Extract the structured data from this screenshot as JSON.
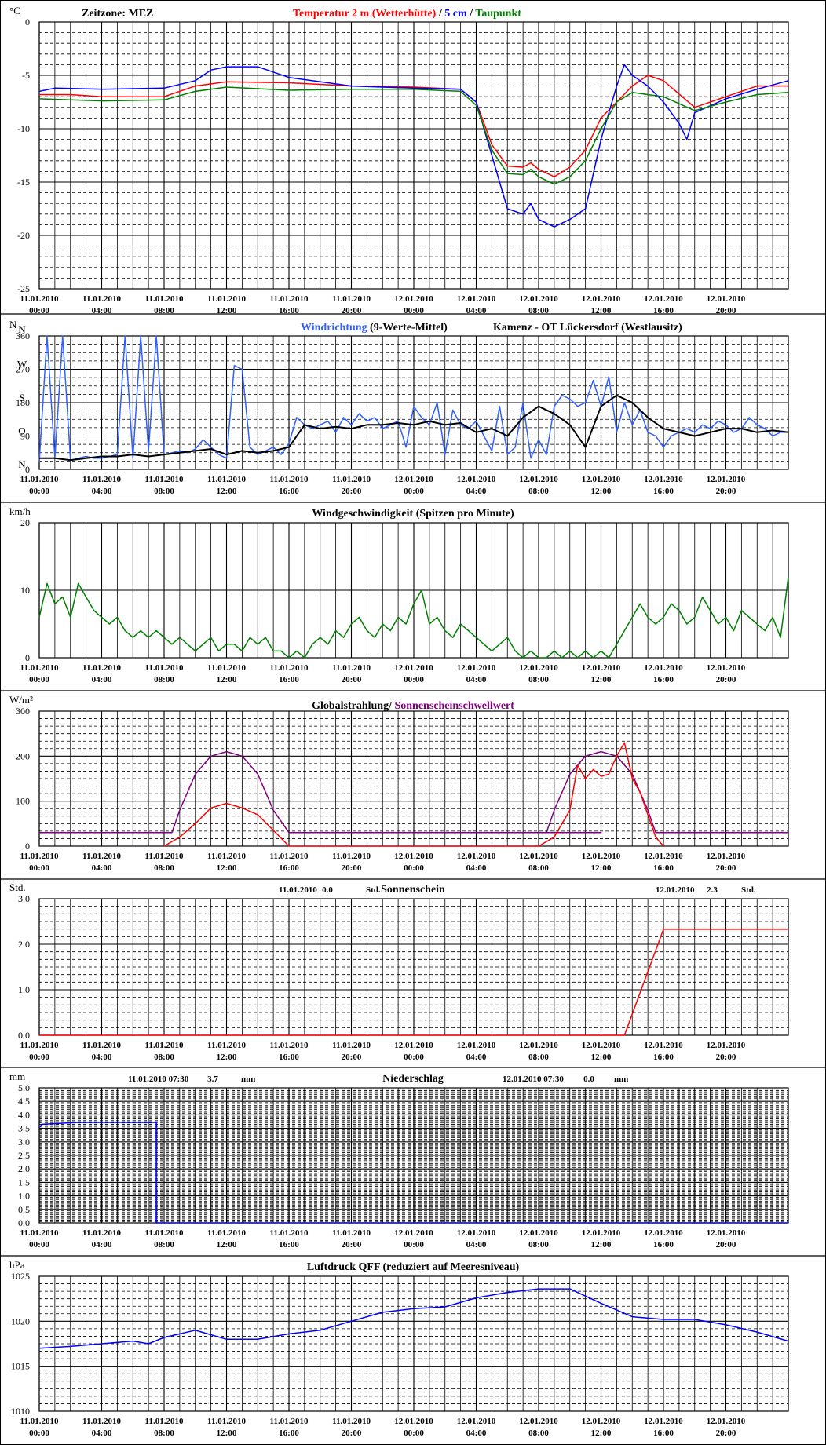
{
  "x_ticks": [
    [
      "11.01.2010",
      "00:00"
    ],
    [
      "11.01.2010",
      "04:00"
    ],
    [
      "11.01.2010",
      "08:00"
    ],
    [
      "11.01.2010",
      "12:00"
    ],
    [
      "11.01.2010",
      "16:00"
    ],
    [
      "11.01.2010",
      "20:00"
    ],
    [
      "12.01.2010",
      "00:00"
    ],
    [
      "12.01.2010",
      "04:00"
    ],
    [
      "12.01.2010",
      "08:00"
    ],
    [
      "12.01.2010",
      "12:00"
    ],
    [
      "12.01.2010",
      "16:00"
    ],
    [
      "12.01.2010",
      "20:00"
    ]
  ],
  "colors": {
    "temp2m": "#ff0000",
    "temp5cm": "#0000ff",
    "dewpoint": "#008000",
    "wind_dir": "#3060ff",
    "wind_dir_mean": "#000000",
    "wind_speed": "#008000",
    "radiation": "#ff0000",
    "sun_threshold": "#800080",
    "sunshine": "#ff0000",
    "precip": "#0000ff",
    "pressure": "#0000ff"
  },
  "chart_data": [
    {
      "type": "line",
      "id": "temperature",
      "unit": "°C",
      "title_parts": [
        {
          "text": "Zeitzone: MEZ",
          "color": "#000000"
        },
        {
          "text": "Temperatur 2 m (Wetterhütte)",
          "color": "#ff0000"
        },
        {
          "text": "  /  ",
          "color": "#000000"
        },
        {
          "text": "5 cm",
          "color": "#0000ff"
        },
        {
          "text": " / ",
          "color": "#000000"
        },
        {
          "text": "Taupunkt",
          "color": "#008000"
        }
      ],
      "ylim": [
        -25,
        0
      ],
      "y_ticks": [
        "0",
        "-5",
        "-10",
        "-15",
        "-20",
        "-25"
      ],
      "x_hours": [
        0,
        36,
        48
      ],
      "series": [
        {
          "key": "temp2m",
          "x": [
            0,
            2,
            4,
            8,
            10,
            12,
            16,
            20,
            24,
            27,
            28,
            29,
            30,
            31,
            31.5,
            32,
            33,
            34,
            35,
            36,
            38,
            39,
            40,
            42,
            44,
            46,
            48
          ],
          "y": [
            -6.8,
            -6.8,
            -7,
            -7,
            -6,
            -5.6,
            -5.7,
            -6,
            -6.1,
            -6.3,
            -7.5,
            -11.5,
            -13.5,
            -13.6,
            -13.2,
            -13.8,
            -14.5,
            -13.6,
            -12,
            -9,
            -6,
            -5,
            -5.5,
            -8,
            -7,
            -6,
            -6
          ]
        },
        {
          "key": "temp5cm",
          "x": [
            0,
            1,
            4,
            8,
            10,
            11,
            12,
            14,
            16,
            20,
            24,
            27,
            28,
            28.5,
            29,
            29.5,
            30,
            31,
            31.5,
            32,
            33,
            34,
            35,
            36,
            37,
            37.5,
            38,
            39,
            40,
            41,
            41.5,
            42,
            44,
            46,
            48
          ],
          "y": [
            -6.5,
            -6.2,
            -6.3,
            -6.2,
            -5.5,
            -4.5,
            -4.2,
            -4.2,
            -5.2,
            -6,
            -6.2,
            -6.3,
            -7.5,
            -10,
            -12.5,
            -15,
            -17.5,
            -18,
            -17,
            -18.5,
            -19.2,
            -18.5,
            -17.5,
            -11,
            -6,
            -4,
            -5,
            -6,
            -7.5,
            -9.5,
            -11,
            -8.5,
            -7.2,
            -6.3,
            -5.5
          ]
        },
        {
          "key": "dewpoint",
          "x": [
            0,
            2,
            4,
            8,
            10,
            12,
            16,
            20,
            24,
            27,
            28,
            29,
            30,
            31,
            31.5,
            32,
            33,
            34,
            35,
            36,
            37,
            38,
            40,
            42,
            44,
            46,
            48
          ],
          "y": [
            -7.2,
            -7.3,
            -7.4,
            -7.3,
            -6.5,
            -6.1,
            -6.4,
            -6.3,
            -6.3,
            -6.5,
            -7.8,
            -12,
            -14.2,
            -14.3,
            -13.8,
            -14.5,
            -15.2,
            -14.5,
            -13,
            -10,
            -7.5,
            -6.6,
            -7,
            -8.3,
            -7.5,
            -6.8,
            -6.6
          ]
        }
      ]
    },
    {
      "type": "line",
      "id": "wind_direction",
      "unit": "N",
      "title_parts": [
        {
          "text": "Windrichtung",
          "color": "#3060ff"
        },
        {
          "text": " (9-Werte-Mittel)",
          "color": "#000000"
        },
        {
          "text": "Kamenz - OT Lückersdorf (Westlausitz)",
          "color": "#000000"
        }
      ],
      "ylim": [
        0,
        360
      ],
      "y_ticks": [
        "360",
        "270",
        "180",
        "90",
        "0"
      ],
      "dir_labels": [
        "N",
        "W",
        "S",
        "O",
        "N"
      ],
      "x_hours": [
        0,
        48
      ],
      "series": [
        {
          "key": "wind_dir",
          "x": [
            0,
            0.5,
            1,
            1.5,
            2,
            2.5,
            3,
            3.5,
            4,
            4.5,
            5,
            5.5,
            6,
            6.5,
            7,
            7.5,
            8,
            8.5,
            9,
            9.5,
            10,
            10.5,
            11,
            11.5,
            12,
            12.5,
            13,
            13.5,
            14,
            14.5,
            15,
            15.5,
            16,
            16.5,
            17,
            17.5,
            18,
            18.5,
            19,
            19.5,
            20,
            20.5,
            21,
            21.5,
            22,
            22.5,
            23,
            23.5,
            24,
            24.5,
            25,
            25.5,
            26,
            26.5,
            27,
            27.5,
            28,
            28.5,
            29,
            29.5,
            30,
            30.5,
            31,
            31.5,
            32,
            32.5,
            33,
            33.5,
            34,
            34.5,
            35,
            35.5,
            36,
            36.5,
            37,
            37.5,
            38,
            38.5,
            39,
            39.5,
            40,
            40.5,
            41,
            41.5,
            42,
            42.5,
            43,
            43.5,
            44,
            44.5,
            45,
            45.5,
            46,
            46.5,
            47,
            47.5,
            48
          ],
          "y": [
            20,
            360,
            30,
            360,
            25,
            30,
            35,
            30,
            30,
            35,
            40,
            360,
            30,
            360,
            50,
            360,
            40,
            45,
            50,
            45,
            55,
            80,
            60,
            40,
            30,
            280,
            270,
            60,
            40,
            50,
            60,
            40,
            70,
            140,
            120,
            110,
            120,
            130,
            100,
            140,
            120,
            150,
            130,
            140,
            110,
            120,
            130,
            60,
            170,
            140,
            120,
            180,
            40,
            160,
            120,
            110,
            130,
            90,
            50,
            170,
            40,
            60,
            180,
            30,
            80,
            40,
            170,
            200,
            190,
            170,
            180,
            240,
            170,
            250,
            100,
            180,
            120,
            160,
            100,
            90,
            60,
            90,
            100,
            110,
            100,
            120,
            110,
            130,
            120,
            100,
            110,
            140,
            120,
            110,
            90,
            100,
            100
          ]
        },
        {
          "key": "wind_dir_mean",
          "x": [
            0,
            1,
            2,
            3,
            4,
            5,
            6,
            7,
            8,
            9,
            10,
            11,
            12,
            13,
            14,
            15,
            16,
            17,
            18,
            19,
            20,
            21,
            22,
            23,
            24,
            25,
            26,
            27,
            28,
            29,
            30,
            31,
            32,
            33,
            34,
            35,
            36,
            37,
            38,
            39,
            40,
            41,
            42,
            43,
            44,
            45,
            46,
            47,
            48
          ],
          "y": [
            30,
            30,
            25,
            30,
            35,
            35,
            40,
            35,
            40,
            45,
            50,
            55,
            40,
            50,
            45,
            50,
            60,
            120,
            110,
            115,
            110,
            120,
            120,
            125,
            120,
            130,
            120,
            125,
            100,
            110,
            90,
            140,
            170,
            150,
            120,
            60,
            170,
            200,
            180,
            140,
            110,
            100,
            90,
            100,
            110,
            110,
            100,
            105,
            100
          ]
        }
      ]
    },
    {
      "type": "line",
      "id": "wind_speed",
      "unit": "km/h",
      "title": "Windgeschwindigkeit (Spitzen pro Minute)",
      "ylim": [
        0,
        20
      ],
      "y_ticks": [
        "20",
        "10",
        "0"
      ],
      "x_hours": [
        0,
        48
      ],
      "series": [
        {
          "key": "wind_speed",
          "x": [
            0,
            0.5,
            1,
            1.5,
            2,
            2.5,
            3,
            3.5,
            4,
            4.5,
            5,
            5.5,
            6,
            6.5,
            7,
            7.5,
            8,
            8.5,
            9,
            9.5,
            10,
            10.5,
            11,
            11.5,
            12,
            12.5,
            13,
            13.5,
            14,
            14.5,
            15,
            15.5,
            16,
            16.5,
            17,
            17.5,
            18,
            18.5,
            19,
            19.5,
            20,
            20.5,
            21,
            21.5,
            22,
            22.5,
            23,
            23.5,
            24,
            24.5,
            25,
            25.5,
            26,
            26.5,
            27,
            27.5,
            28,
            28.5,
            29,
            29.5,
            30,
            30.5,
            31,
            31.5,
            32,
            32.5,
            33,
            33.5,
            34,
            34.5,
            35,
            35.5,
            36,
            36.5,
            37,
            37.5,
            38,
            38.5,
            39,
            39.5,
            40,
            40.5,
            41,
            41.5,
            42,
            42.5,
            43,
            43.5,
            44,
            44.5,
            45,
            45.5,
            46,
            46.5,
            47,
            47.5,
            48
          ],
          "y": [
            6,
            11,
            8,
            9,
            6,
            11,
            9,
            7,
            6,
            5,
            6,
            4,
            3,
            4,
            3,
            4,
            3,
            2,
            3,
            2,
            1,
            2,
            3,
            1,
            2,
            2,
            1,
            3,
            2,
            3,
            1,
            1,
            0,
            1,
            0,
            2,
            3,
            2,
            4,
            3,
            5,
            6,
            4,
            3,
            5,
            4,
            6,
            5,
            8,
            10,
            5,
            6,
            4,
            3,
            5,
            4,
            3,
            2,
            1,
            2,
            3,
            1,
            0,
            1,
            0,
            0,
            1,
            0,
            1,
            0,
            1,
            0,
            1,
            0,
            2,
            4,
            6,
            8,
            6,
            5,
            6,
            8,
            7,
            5,
            6,
            9,
            7,
            5,
            6,
            4,
            7,
            6,
            5,
            4,
            6,
            3,
            12
          ]
        }
      ]
    },
    {
      "type": "line",
      "id": "radiation",
      "unit": "W/m²",
      "title_parts": [
        {
          "text": "Globalstrahlung/ ",
          "color": "#000000"
        },
        {
          "text": "Sonnenscheinschwellwert",
          "color": "#800080"
        }
      ],
      "ylim": [
        0,
        300
      ],
      "y_ticks": [
        "300",
        "200",
        "100",
        "0"
      ],
      "x_hours": [
        0,
        48
      ],
      "series": [
        {
          "key": "sun_threshold",
          "x": [
            0,
            8.5,
            9,
            10,
            11,
            12,
            13,
            14,
            15,
            16,
            36,
            32.5,
            33,
            34,
            35,
            36,
            37,
            38,
            39,
            39.5,
            48
          ],
          "y": [
            30,
            30,
            80,
            160,
            200,
            210,
            200,
            160,
            80,
            30,
            30,
            30,
            80,
            160,
            200,
            210,
            200,
            160,
            80,
            30,
            30
          ]
        },
        {
          "key": "radiation",
          "x": [
            8,
            9,
            10,
            11,
            12,
            13,
            14,
            15,
            16,
            32,
            33,
            33.5,
            34,
            34.5,
            35,
            35.5,
            36,
            36.5,
            37,
            37.5,
            38,
            38.5,
            39,
            39.5,
            40
          ],
          "y": [
            0,
            20,
            50,
            85,
            95,
            85,
            70,
            35,
            0,
            0,
            20,
            50,
            80,
            180,
            150,
            170,
            155,
            160,
            200,
            230,
            150,
            120,
            70,
            20,
            0
          ]
        }
      ]
    },
    {
      "type": "line",
      "id": "sunshine",
      "unit": "Std.",
      "title": "Sonnenschein",
      "day_labels": [
        {
          "date": "11.01.2010",
          "value": "0.0",
          "unit": "Std."
        },
        {
          "date": "12.01.2010",
          "value": "2.3",
          "unit": "Std."
        }
      ],
      "ylim": [
        0,
        3
      ],
      "y_ticks": [
        "3.0",
        "2.0",
        "1.0",
        "0.0"
      ],
      "x_hours": [
        0,
        48
      ],
      "series": [
        {
          "key": "sunshine",
          "x": [
            0,
            37.5,
            40,
            48
          ],
          "y": [
            0,
            0,
            2.33,
            2.33
          ]
        }
      ]
    },
    {
      "type": "line",
      "id": "precipitation",
      "unit": "mm",
      "title": "Niederschlag",
      "day_labels": [
        {
          "date": "11.01.2010 07:30",
          "value": "3.7",
          "unit": "mm"
        },
        {
          "date": "12.01.2010 07:30",
          "value": "0.0",
          "unit": "mm"
        }
      ],
      "ylim": [
        0,
        5
      ],
      "y_ticks": [
        "5.0",
        "4.5",
        "4.0",
        "3.5",
        "3.0",
        "2.5",
        "2.0",
        "1.5",
        "1.0",
        "0.5",
        "0.0"
      ],
      "x_hours": [
        0,
        48
      ],
      "series": [
        {
          "key": "precip",
          "x": [
            0,
            0.2,
            2.5,
            7.5,
            7.5,
            48
          ],
          "y": [
            3.55,
            3.65,
            3.72,
            3.72,
            0,
            0
          ]
        }
      ]
    },
    {
      "type": "line",
      "id": "pressure",
      "unit": "hPa",
      "title": "Luftdruck QFF (reduziert auf Meeresniveau)",
      "ylim": [
        1010,
        1025
      ],
      "y_ticks": [
        "1025",
        "1020",
        "1015",
        "1010"
      ],
      "x_hours": [
        0,
        48
      ],
      "series": [
        {
          "key": "pressure",
          "x": [
            0,
            2,
            4,
            6,
            7,
            8,
            10,
            12,
            14,
            16,
            18,
            20,
            22,
            24,
            26,
            28,
            30,
            32,
            34,
            36,
            38,
            40,
            42,
            44,
            46,
            48
          ],
          "y": [
            1017,
            1017.2,
            1017.5,
            1017.8,
            1017.5,
            1018.2,
            1019,
            1018,
            1018,
            1018.6,
            1019,
            1020,
            1021,
            1021.4,
            1021.6,
            1022.6,
            1023.2,
            1023.6,
            1023.6,
            1022,
            1020.5,
            1020.2,
            1020.2,
            1019.6,
            1018.8,
            1017.8
          ]
        }
      ]
    }
  ]
}
